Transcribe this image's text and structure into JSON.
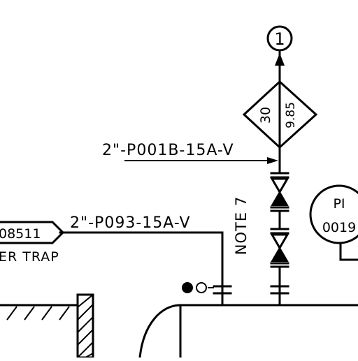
{
  "offpage_connector": {
    "label": "1"
  },
  "diamond_tag": {
    "left_value": "30",
    "right_value": "9.85"
  },
  "line_labels": {
    "upper": "2\"-P001B-15A-V",
    "lower": "2\"-P093-15A-V"
  },
  "note": "NOTE 7",
  "tag_box": {
    "label": "08511"
  },
  "equipment_label": "ER TRAP",
  "instrument": {
    "type": "PI",
    "number": "0019"
  }
}
